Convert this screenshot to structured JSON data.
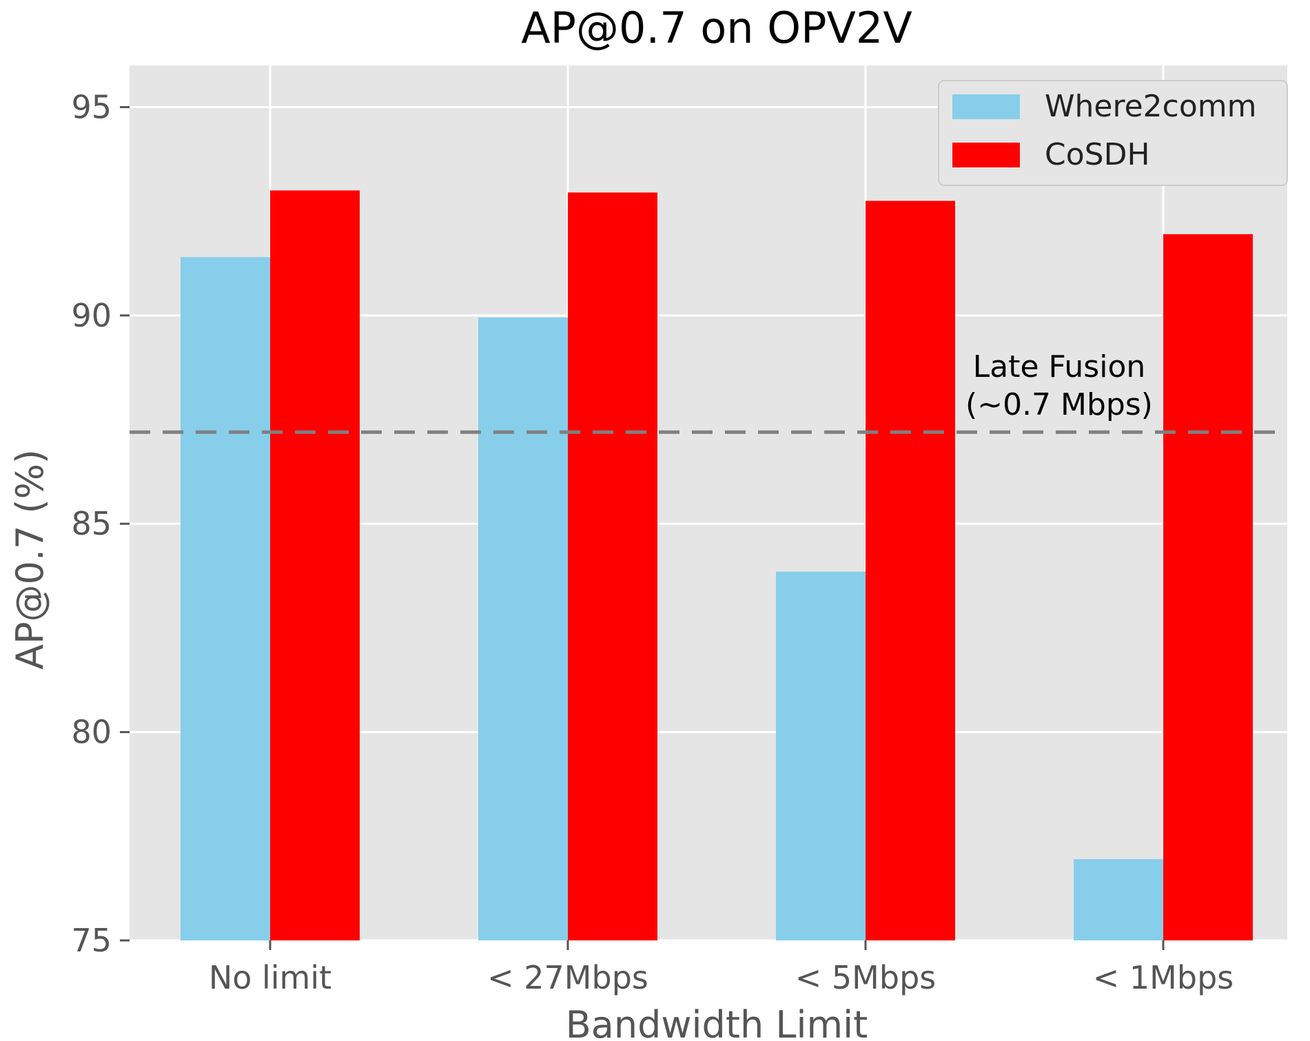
{
  "chart_data": {
    "type": "bar",
    "title": "AP@0.7 on OPV2V",
    "xlabel": "Bandwidth Limit",
    "ylabel": "AP@0.7 (%)",
    "categories": [
      "No limit",
      "< 27Mbps",
      "< 5Mbps",
      "< 1Mbps"
    ],
    "series": [
      {
        "name": "Where2comm",
        "color": "#87CEEB",
        "values": [
          91.4,
          89.95,
          83.85,
          76.95
        ]
      },
      {
        "name": "CoSDH",
        "color": "#FF0000",
        "values": [
          93.0,
          92.95,
          92.75,
          91.95
        ]
      }
    ],
    "ylim": [
      75,
      96
    ],
    "yticks": [
      75,
      80,
      85,
      90,
      95
    ],
    "grid": true,
    "legend_position": "top-right",
    "reference_line": {
      "value": 87.2,
      "style": "dashed",
      "color": "#808080",
      "label_line1": "Late Fusion",
      "label_line2": "(~0.7 Mbps)"
    },
    "background_color": "#E5E5E5"
  }
}
